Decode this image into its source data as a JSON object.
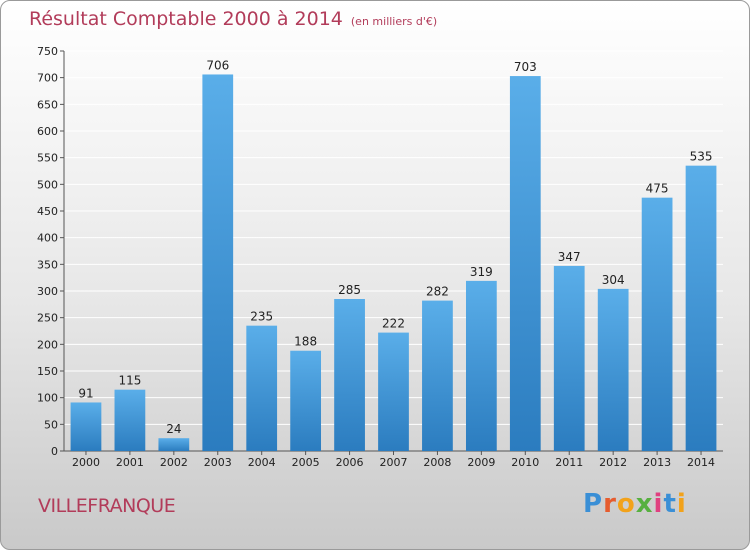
{
  "header": {
    "title": "Résultat Comptable 2000 à 2014",
    "subtitle": "(en milliers d'€)"
  },
  "location": "VILLEFRANQUE",
  "logo": {
    "letters": [
      "P",
      "r",
      "o",
      "x",
      "i",
      "t",
      "i"
    ]
  },
  "colors": {
    "title": "#b23c5a",
    "bar_top": "#5aaee9",
    "bar_bottom": "#2b7cbf",
    "grid": "#ffffff",
    "axis_text": "#222222"
  },
  "chart_data": {
    "type": "bar",
    "title": "Résultat Comptable 2000 à 2014",
    "subtitle": "(en milliers d'€)",
    "xlabel": "",
    "ylabel": "",
    "categories": [
      "2000",
      "2001",
      "2002",
      "2003",
      "2004",
      "2005",
      "2006",
      "2007",
      "2008",
      "2009",
      "2010",
      "2011",
      "2012",
      "2013",
      "2014"
    ],
    "values": [
      91,
      115,
      24,
      706,
      235,
      188,
      285,
      222,
      282,
      319,
      703,
      347,
      304,
      475,
      535
    ],
    "ylim": [
      0,
      750
    ],
    "yticks": [
      0,
      50,
      100,
      150,
      200,
      250,
      300,
      350,
      400,
      450,
      500,
      550,
      600,
      650,
      700,
      750
    ],
    "grid": true,
    "data_labels": true
  }
}
